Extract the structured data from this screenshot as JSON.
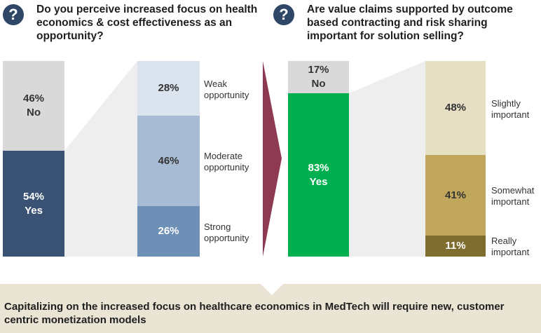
{
  "header": {
    "icon_glyph": "?",
    "question_left": "Do you perceive increased focus on health economics & cost effectiveness as an opportunity?",
    "question_right": "Are value claims supported by outcome based contracting and risk sharing important for solution selling?"
  },
  "footer": {
    "text": "Capitalizing on the increased focus on healthcare economics in MedTech will require new, customer centric monetization models"
  },
  "colors": {
    "icon_bg": "#2f4766",
    "no_grey": "#d9d9d9",
    "yes_navy": "#3a5273",
    "weak": "#dbe3ee",
    "moderate": "#a8bbd4",
    "strong": "#6e8fb6",
    "yes_green": "#00b050",
    "slightly": "#e6dfc3",
    "somewhat": "#c0a75c",
    "really": "#7f6d2f",
    "arrow": "#8d3a52",
    "footer_bg": "#e9e4d4"
  },
  "chart_data": [
    {
      "type": "bar",
      "stacked": true,
      "title": "Do you perceive increased focus on health economics & cost effectiveness as an opportunity?",
      "series": [
        {
          "name": "No",
          "value": 46,
          "label": "46%"
        },
        {
          "name": "Yes",
          "value": 54,
          "label": "54%"
        }
      ],
      "breakdown_of": "Yes",
      "breakdown": [
        {
          "name": "Weak opportunity",
          "value": 28,
          "label": "28%"
        },
        {
          "name": "Moderate opportunity",
          "value": 46,
          "label": "46%"
        },
        {
          "name": "Strong opportunity",
          "value": 26,
          "label": "26%"
        }
      ]
    },
    {
      "type": "bar",
      "stacked": true,
      "title": "Are value claims supported by outcome based contracting and risk sharing important for solution selling?",
      "series": [
        {
          "name": "No",
          "value": 17,
          "label": "17%"
        },
        {
          "name": "Yes",
          "value": 83,
          "label": "83%"
        }
      ],
      "breakdown_of": "Yes",
      "breakdown": [
        {
          "name": "Slightly important",
          "value": 48,
          "label": "48%"
        },
        {
          "name": "Somewhat important",
          "value": 41,
          "label": "41%"
        },
        {
          "name": "Really important",
          "value": 11,
          "label": "11%"
        }
      ]
    }
  ]
}
